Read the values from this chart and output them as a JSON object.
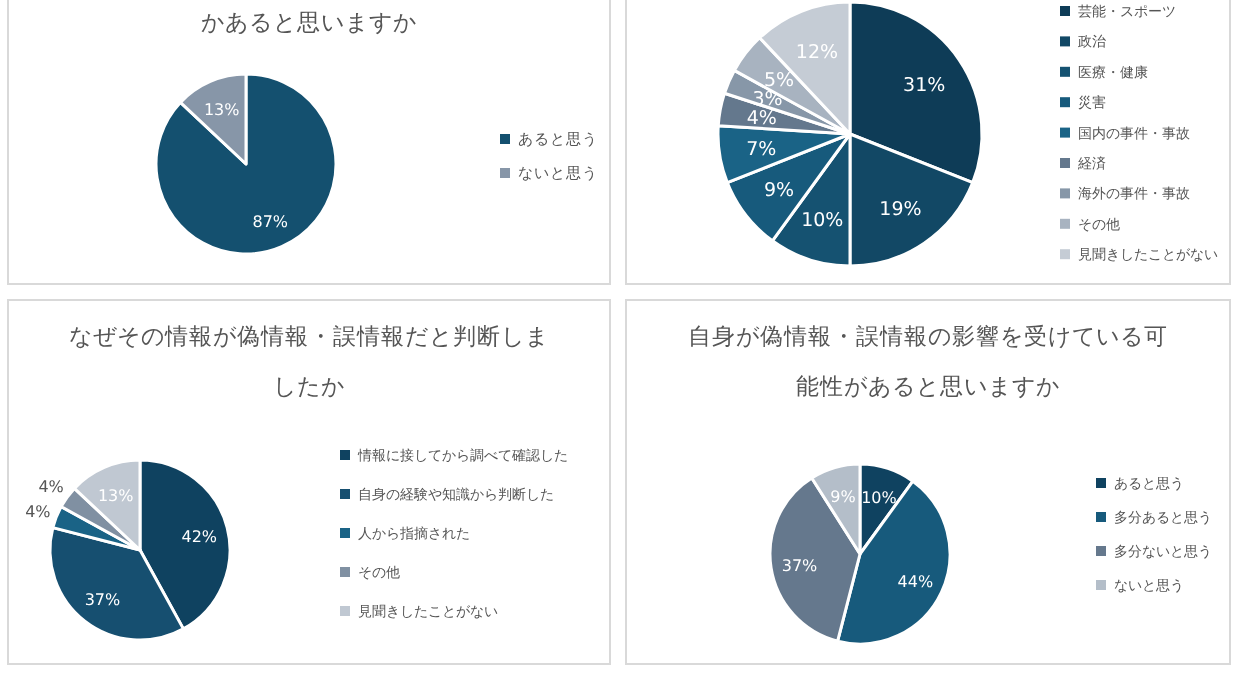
{
  "chart_data": [
    {
      "type": "pie",
      "title": "かあると思いますか",
      "categories": [
        "あると思う",
        "ないと思う"
      ],
      "values": [
        87,
        13
      ],
      "value_labels": [
        "87%",
        "13%"
      ],
      "colors": [
        "#14506f",
        "#8796a8"
      ],
      "legend": "right"
    },
    {
      "type": "pie",
      "categories": [
        "芸能・スポーツ",
        "政治",
        "医療・健康",
        "災害",
        "国内の事件・事故",
        "経済",
        "海外の事件・事故",
        "その他",
        "見聞きしたことがない"
      ],
      "values": [
        31,
        19,
        10,
        9,
        7,
        4,
        3,
        5,
        12
      ],
      "value_labels": [
        "31%",
        "19%",
        "10%",
        "9%",
        "7%",
        "4%",
        "3%",
        "5%",
        "12%"
      ],
      "colors": [
        "#0e3c57",
        "#124865",
        "#155271",
        "#175a7c",
        "#1a6386",
        "#64788d",
        "#8797a8",
        "#a8b3c0",
        "#c5ccd5"
      ],
      "legend": "right"
    },
    {
      "type": "pie",
      "title": "なぜその情報が偽情報・誤情報だと判断しましたか",
      "categories": [
        "情報に接してから調べて確認した",
        "自身の経験や知識から判断した",
        "人から指摘された",
        "その他",
        "見聞きしたことがない"
      ],
      "values": [
        42,
        37,
        4,
        4,
        13
      ],
      "value_labels": [
        "42%",
        "37%",
        "4%",
        "4%",
        "13%"
      ],
      "colors": [
        "#0f4260",
        "#164f70",
        "#1a6386",
        "#8090a2",
        "#c0c8d2"
      ],
      "legend": "right"
    },
    {
      "type": "pie",
      "title": "自身が偽情報・誤情報の影響を受けている可能性があると思いますか",
      "categories": [
        "あると思う",
        "多分あると思う",
        "多分ないと思う",
        "ないと思う"
      ],
      "values": [
        10,
        44,
        37,
        9
      ],
      "value_labels": [
        "10%",
        "44%",
        "37%",
        "9%"
      ],
      "colors": [
        "#0f4260",
        "#175a7c",
        "#65788d",
        "#b4bec9"
      ],
      "legend": "right"
    }
  ]
}
